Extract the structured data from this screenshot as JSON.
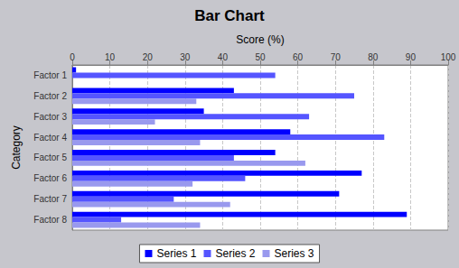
{
  "chart_data": {
    "type": "bar",
    "title": "Bar Chart",
    "x_label": "Score (%)",
    "y_label": "Category",
    "orientation": "horizontal",
    "categories": [
      "Factor 1",
      "Factor 2",
      "Factor 3",
      "Factor 4",
      "Factor 5",
      "Factor 6",
      "Factor 7",
      "Factor 8"
    ],
    "series": [
      {
        "name": "Series 1",
        "color": "#0000ff",
        "values": [
          1,
          43,
          35,
          58,
          54,
          77,
          71,
          89
        ]
      },
      {
        "name": "Series 2",
        "color": "#5555ff",
        "values": [
          54,
          75,
          63,
          83,
          43,
          46,
          27,
          13
        ]
      },
      {
        "name": "Series 3",
        "color": "#9999ee",
        "values": [
          null,
          33,
          22,
          34,
          62,
          32,
          42,
          34
        ]
      }
    ],
    "xlim": [
      0,
      100
    ],
    "xticks": [
      0,
      10,
      20,
      30,
      40,
      50,
      60,
      70,
      80,
      90,
      100
    ],
    "grid": true,
    "legend": "bottom"
  }
}
